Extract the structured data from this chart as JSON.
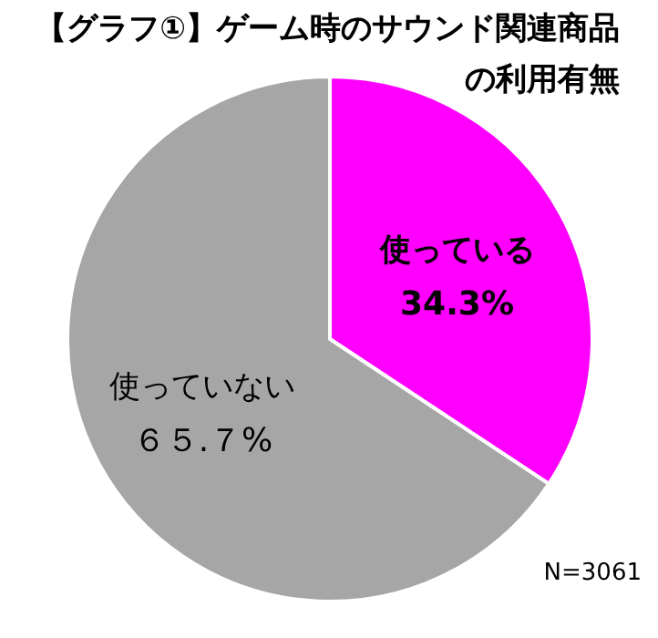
{
  "chart_data": {
    "type": "pie",
    "title": "【グラフ①】ゲーム時のサウンド関連商品の利用有無",
    "categories": [
      "使っている",
      "使っていない"
    ],
    "values": [
      34.3,
      65.7
    ],
    "value_labels": [
      "34.3%",
      "６５.７%"
    ],
    "colors": [
      "#ff00ff",
      "#a6a6a6"
    ],
    "annotations": [
      "N=3061"
    ]
  }
}
